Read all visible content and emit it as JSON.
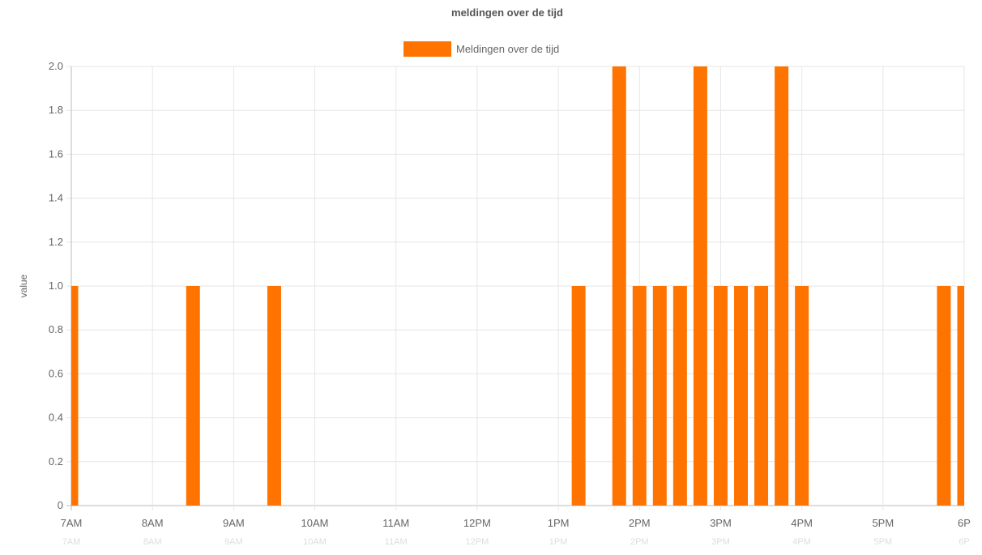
{
  "chart_data": {
    "type": "bar",
    "title": "meldingen over de tijd",
    "ylabel": "value",
    "xlabel": "",
    "ylim": [
      0,
      2.0
    ],
    "y_ticks": [
      "0",
      "0.2",
      "0.4",
      "0.6",
      "0.8",
      "1.0",
      "1.2",
      "1.4",
      "1.6",
      "1.8",
      "2.0"
    ],
    "x_ticks": [
      "7AM",
      "8AM",
      "9AM",
      "10AM",
      "11AM",
      "12PM",
      "1PM",
      "2PM",
      "3PM",
      "4PM",
      "5PM",
      "6P"
    ],
    "x_range": [
      "07:00",
      "18:00"
    ],
    "grid": true,
    "legend_position": "top",
    "series": [
      {
        "name": "Meldingen over de tijd",
        "color": "#ff7300",
        "points": [
          {
            "x": "07:00",
            "y": 1
          },
          {
            "x": "08:30",
            "y": 1
          },
          {
            "x": "09:30",
            "y": 1
          },
          {
            "x": "13:15",
            "y": 1
          },
          {
            "x": "13:45",
            "y": 2
          },
          {
            "x": "14:00",
            "y": 1
          },
          {
            "x": "14:15",
            "y": 1
          },
          {
            "x": "14:30",
            "y": 1
          },
          {
            "x": "14:45",
            "y": 2
          },
          {
            "x": "15:00",
            "y": 1
          },
          {
            "x": "15:15",
            "y": 1
          },
          {
            "x": "15:30",
            "y": 1
          },
          {
            "x": "15:45",
            "y": 2
          },
          {
            "x": "16:00",
            "y": 1
          },
          {
            "x": "17:45",
            "y": 1
          },
          {
            "x": "18:00",
            "y": 1
          }
        ]
      }
    ]
  }
}
